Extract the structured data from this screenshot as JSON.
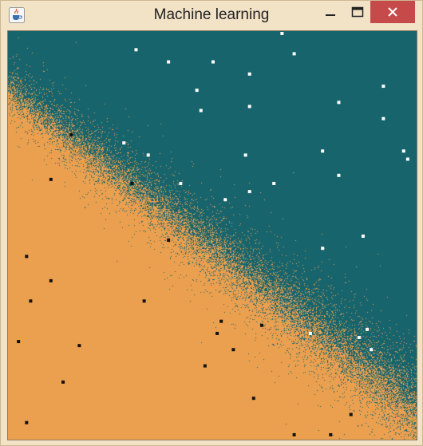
{
  "window": {
    "title": "Machine learning",
    "icon": "java-cup-icon",
    "controls": [
      "minimize-icon",
      "maximize-icon",
      "close-icon"
    ]
  },
  "colors": {
    "class_a": "#17646d",
    "class_b": "#eba04f",
    "point_a": "#ffffff",
    "point_b": "#111111",
    "close_bg": "#c74a4a",
    "frame": "#f2e2c6"
  },
  "plot": {
    "x_range": [
      0,
      1
    ],
    "y_range": [
      0,
      1
    ],
    "boundary": "diagonal from upper-left to lower-right, noisy transition band",
    "white_points": [
      [
        0.31,
        0.96
      ],
      [
        0.39,
        0.93
      ],
      [
        0.5,
        0.93
      ],
      [
        0.59,
        0.9
      ],
      [
        0.67,
        1.0
      ],
      [
        0.7,
        0.95
      ],
      [
        0.46,
        0.86
      ],
      [
        0.47,
        0.81
      ],
      [
        0.59,
        0.82
      ],
      [
        0.81,
        0.83
      ],
      [
        0.92,
        0.87
      ],
      [
        0.92,
        0.79
      ],
      [
        0.28,
        0.73
      ],
      [
        0.34,
        0.7
      ],
      [
        0.58,
        0.7
      ],
      [
        0.77,
        0.71
      ],
      [
        0.97,
        0.71
      ],
      [
        0.98,
        0.69
      ],
      [
        0.42,
        0.63
      ],
      [
        0.65,
        0.63
      ],
      [
        0.59,
        0.61
      ],
      [
        0.81,
        0.65
      ],
      [
        0.53,
        0.59
      ],
      [
        0.87,
        0.5
      ],
      [
        0.77,
        0.47
      ],
      [
        0.74,
        0.26
      ],
      [
        0.88,
        0.27
      ],
      [
        0.86,
        0.25
      ],
      [
        0.89,
        0.22
      ]
    ],
    "black_points": [
      [
        0.15,
        0.75
      ],
      [
        0.1,
        0.64
      ],
      [
        0.3,
        0.63
      ],
      [
        0.39,
        0.49
      ],
      [
        0.04,
        0.45
      ],
      [
        0.1,
        0.39
      ],
      [
        0.05,
        0.34
      ],
      [
        0.33,
        0.34
      ],
      [
        0.52,
        0.29
      ],
      [
        0.62,
        0.28
      ],
      [
        0.51,
        0.26
      ],
      [
        0.55,
        0.22
      ],
      [
        0.02,
        0.24
      ],
      [
        0.17,
        0.23
      ],
      [
        0.48,
        0.18
      ],
      [
        0.13,
        0.14
      ],
      [
        0.6,
        0.1
      ],
      [
        0.84,
        0.06
      ],
      [
        0.04,
        0.04
      ],
      [
        0.7,
        0.01
      ],
      [
        0.79,
        0.01
      ]
    ]
  }
}
